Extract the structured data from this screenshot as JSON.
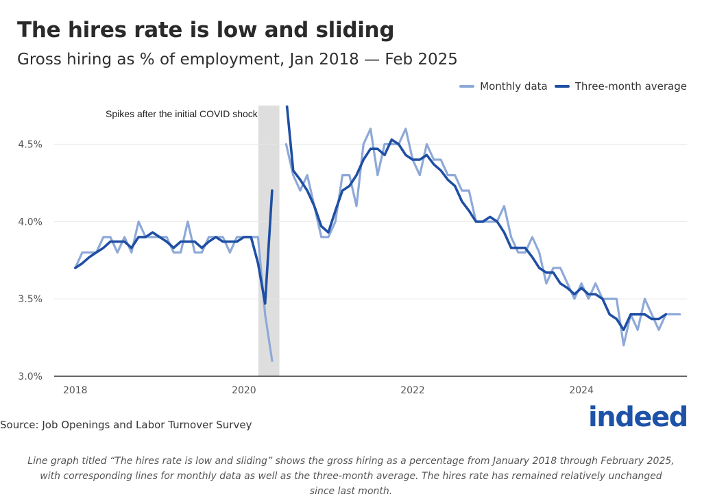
{
  "title": "The hires rate is low and sliding",
  "subtitle": "Gross hiring as % of employment, Jan 2018 — Feb 2025",
  "source": "Source: Job Openings and Labor Turnover Survey",
  "logo_text": "indeed",
  "caption": "Line graph titled “The hires rate is low and sliding” shows the gross hiring as a percentage from January 2018 through February 2025, with corresponding lines for monthly data as well as the three-month average. The hires rate has remained relatively unchanged since last month.",
  "colors": {
    "monthly": "#8ea9d8",
    "average": "#1f4fa3",
    "shade": "#dedede",
    "grid": "#e6e6e6",
    "axis": "#333333"
  },
  "chart_data": {
    "type": "line",
    "title": "The hires rate is low and sliding",
    "ylabel": "",
    "xlabel": "",
    "ylim": [
      3.0,
      4.75
    ],
    "xlim": [
      2017.75,
      2025.25
    ],
    "grid": true,
    "legend_position": "top-right",
    "y_ticks": [
      3.0,
      3.5,
      4.0,
      4.5
    ],
    "y_tick_labels": [
      "3.0%",
      "3.5%",
      "4.0%",
      "4.5%"
    ],
    "x_ticks": [
      2018,
      2020,
      2022,
      2024
    ],
    "x_tick_labels": [
      "2018",
      "2020",
      "2022",
      "2024"
    ],
    "annotation": {
      "text": "Spikes after the initial COVID shock",
      "shaded_range": [
        2020.17,
        2020.42
      ]
    },
    "series": [
      {
        "name": "Monthly data",
        "segments": [
          {
            "start": 2018.0,
            "values": [
              3.7,
              3.8,
              3.8,
              3.8,
              3.9,
              3.9,
              3.8,
              3.9,
              3.8,
              4.0,
              3.9,
              3.9,
              3.9,
              3.9,
              3.8,
              3.8,
              4.0,
              3.8,
              3.8,
              3.9,
              3.9,
              3.9,
              3.8,
              3.9,
              3.9,
              3.9,
              3.9,
              3.4,
              3.1
            ]
          },
          {
            "start": 2020.5,
            "values": [
              4.5,
              4.3,
              4.2,
              4.3,
              4.1,
              3.9,
              3.9,
              4.0,
              4.3,
              4.3,
              4.1,
              4.5,
              4.6,
              4.3,
              4.5,
              4.5,
              4.5,
              4.6,
              4.4,
              4.3,
              4.5,
              4.4,
              4.4,
              4.3,
              4.3,
              4.2,
              4.2,
              4.0,
              4.0,
              4.0,
              4.0,
              4.1,
              3.9,
              3.8,
              3.8,
              3.9,
              3.8,
              3.6,
              3.7,
              3.7,
              3.6,
              3.5,
              3.6,
              3.5,
              3.6,
              3.5,
              3.5,
              3.5,
              3.2,
              3.4,
              3.3,
              3.5,
              3.4,
              3.3,
              3.4,
              3.4,
              3.4
            ]
          }
        ]
      },
      {
        "name": "Three-month average",
        "segments": [
          {
            "start": 2018.0,
            "values": [
              3.7,
              3.73,
              3.77,
              3.8,
              3.83,
              3.87,
              3.87,
              3.87,
              3.83,
              3.9,
              3.9,
              3.93,
              3.9,
              3.87,
              3.83,
              3.87,
              3.87,
              3.87,
              3.83,
              3.87,
              3.9,
              3.87,
              3.87,
              3.87,
              3.9,
              3.9,
              3.73,
              3.47,
              4.2
            ]
          },
          {
            "start": 2020.5,
            "values": [
              4.8,
              4.33,
              4.27,
              4.2,
              4.1,
              3.97,
              3.93,
              4.07,
              4.2,
              4.23,
              4.3,
              4.4,
              4.47,
              4.47,
              4.43,
              4.53,
              4.5,
              4.43,
              4.4,
              4.4,
              4.43,
              4.37,
              4.33,
              4.27,
              4.23,
              4.13,
              4.07,
              4.0,
              4.0,
              4.03,
              4.0,
              3.93,
              3.83,
              3.83,
              3.83,
              3.77,
              3.7,
              3.67,
              3.67,
              3.6,
              3.57,
              3.53,
              3.57,
              3.53,
              3.53,
              3.5,
              3.4,
              3.37,
              3.3,
              3.4,
              3.4,
              3.4,
              3.37,
              3.37,
              3.4
            ]
          }
        ]
      }
    ]
  }
}
